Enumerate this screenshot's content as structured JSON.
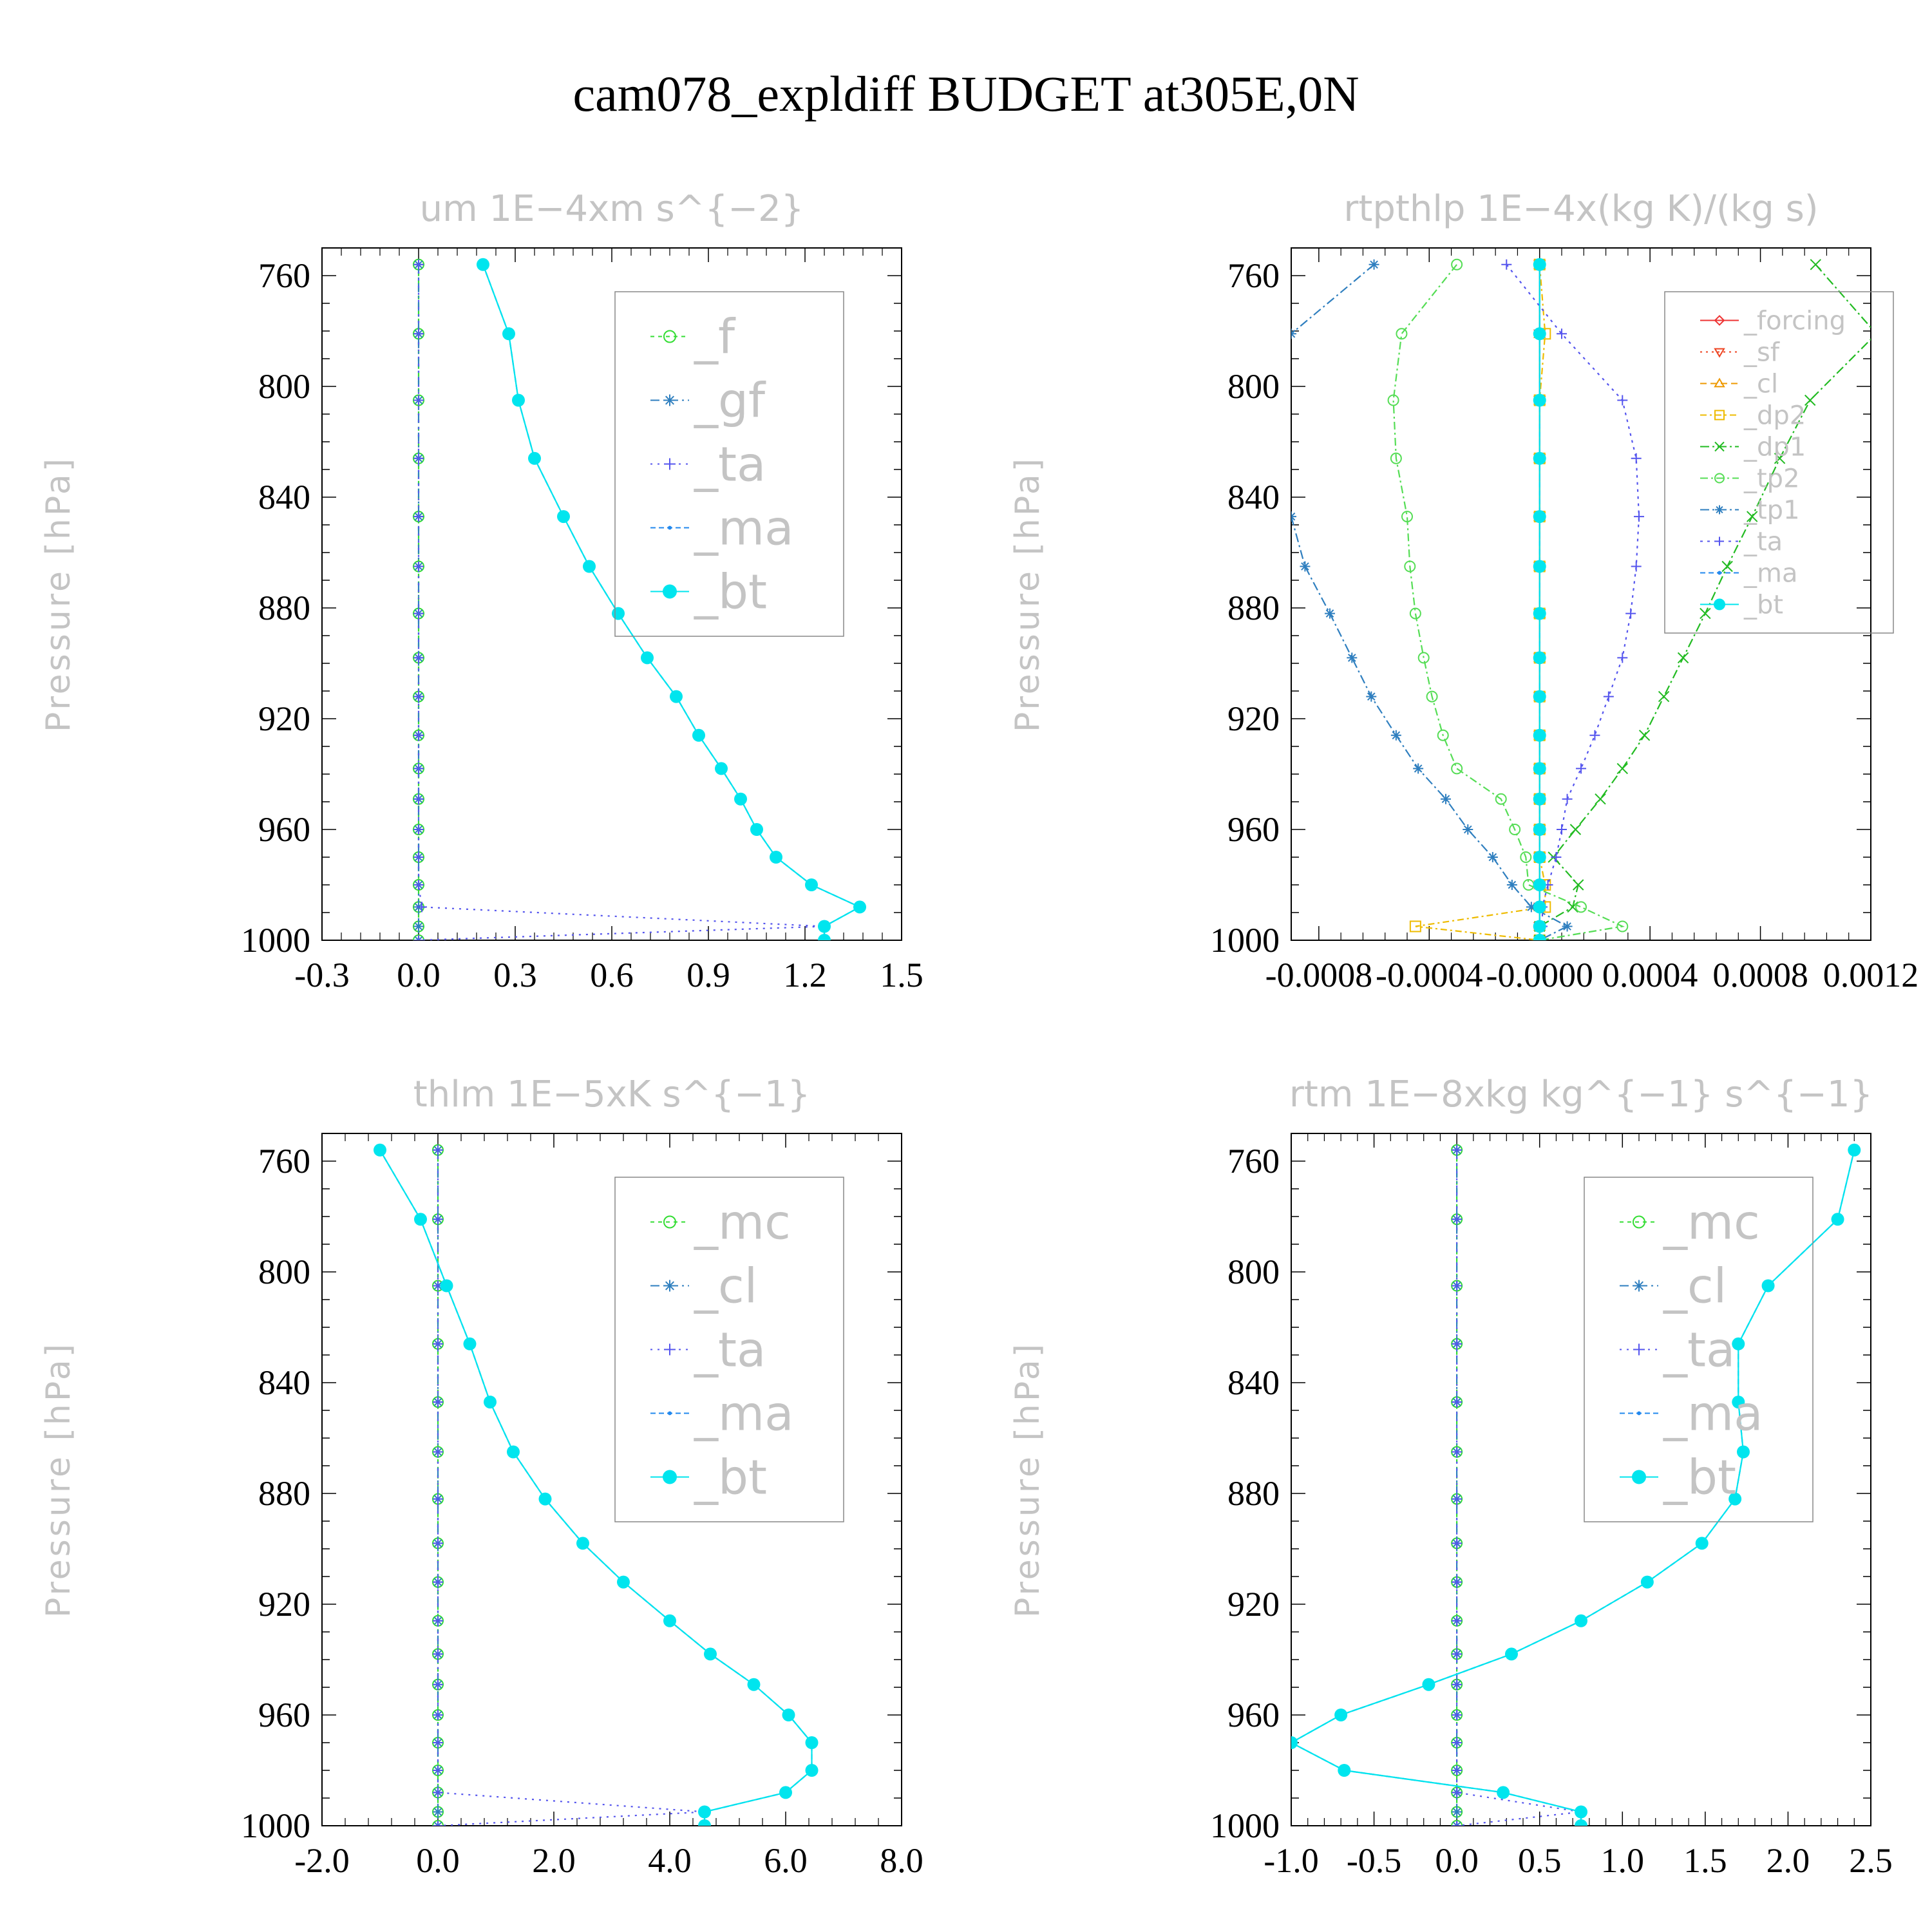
{
  "title": "cam078_expldiff  BUDGET at305E,0N",
  "chart_data": [
    {
      "type": "line",
      "title": "um   1E−4xm s^{−2}",
      "ylabel": "Pressure [hPa]",
      "ylim": [
        1000,
        750
      ],
      "yticks": [
        "760",
        "800",
        "840",
        "880",
        "920",
        "960",
        "1000"
      ],
      "xlim": [
        -0.3,
        1.5
      ],
      "xticks": [
        "-0.3",
        "0.0",
        "0.3",
        "0.6",
        "0.9",
        "1.2",
        "1.5"
      ],
      "legend_position": "top-right",
      "y": [
        756,
        781,
        805,
        826,
        847,
        865,
        882,
        898,
        912,
        926,
        938,
        949,
        960,
        970,
        980,
        988,
        995,
        1000
      ],
      "series": [
        {
          "name": "_f",
          "color": "#33dd33",
          "marker": "circle-open",
          "dash": "6,6",
          "values": [
            0,
            0,
            0,
            0,
            0,
            0,
            0,
            0,
            0,
            0,
            0,
            0,
            0,
            0,
            0,
            0,
            0,
            0
          ]
        },
        {
          "name": "_gf",
          "color": "#2f7fbf",
          "marker": "asterisk",
          "dash": "14,6,3,6",
          "values": [
            0,
            0,
            0,
            0,
            0,
            0,
            0,
            0,
            0,
            0,
            0,
            0,
            0,
            0,
            0,
            0,
            0,
            0
          ]
        },
        {
          "name": "_ta",
          "color": "#5555ee",
          "marker": "plus",
          "dash": "3,8",
          "values": [
            0,
            0,
            0,
            0,
            0,
            0,
            0,
            0,
            0,
            0,
            0,
            0,
            0,
            0,
            0,
            0.01,
            1.26,
            0
          ]
        },
        {
          "name": "_ma",
          "color": "#2288ee",
          "marker": "dot",
          "dash": "8,5",
          "values": [
            0.2,
            0.28,
            0.31,
            0.36,
            0.45,
            0.53,
            0.62,
            0.71,
            0.8,
            0.87,
            0.94,
            1.0,
            1.05,
            1.11,
            1.22,
            1.37,
            1.26,
            1.26
          ]
        },
        {
          "name": "_bt",
          "color": "#00e5ee",
          "marker": "filled",
          "dash": "none",
          "values": [
            0.2,
            0.28,
            0.31,
            0.36,
            0.45,
            0.53,
            0.62,
            0.71,
            0.8,
            0.87,
            0.94,
            1.0,
            1.05,
            1.11,
            1.22,
            1.37,
            1.26,
            1.26
          ]
        }
      ]
    },
    {
      "type": "line",
      "title": "rtpthlp   1E−4x(kg K)/(kg s)",
      "ylabel": "Pressure [hPa]",
      "ylim": [
        1000,
        750
      ],
      "yticks": [
        "760",
        "800",
        "840",
        "880",
        "920",
        "960",
        "1000"
      ],
      "xlim": [
        -0.0009,
        0.0012
      ],
      "xticks": [
        "-0.0008",
        "-0.0004",
        "-0.0000",
        "0.0004",
        "0.0008",
        "0.0012"
      ],
      "legend_position": "top-right",
      "y": [
        756,
        781,
        805,
        826,
        847,
        865,
        882,
        898,
        912,
        926,
        938,
        949,
        960,
        970,
        980,
        988,
        995,
        1000
      ],
      "series": [
        {
          "name": "_forcing",
          "color": "#ee3333",
          "marker": "diamond-open",
          "dash": "none",
          "values": [
            0,
            0,
            0,
            0,
            0,
            0,
            0,
            0,
            0,
            0,
            0,
            0,
            0,
            0,
            0,
            0,
            0,
            0
          ]
        },
        {
          "name": "_sf",
          "color": "#ee4422",
          "marker": "triangle-down",
          "dash": "3,6",
          "values": [
            0,
            0,
            0,
            0,
            0,
            0,
            0,
            0,
            0,
            0,
            0,
            0,
            0,
            0,
            0,
            0,
            0,
            0
          ]
        },
        {
          "name": "_cl",
          "color": "#ee9900",
          "marker": "triangle-up",
          "dash": "10,6",
          "values": [
            0,
            0,
            0,
            0,
            0,
            0,
            0,
            0,
            0,
            0,
            0,
            0,
            0,
            0,
            0,
            0,
            0,
            0
          ]
        },
        {
          "name": "_dp2",
          "color": "#eebb00",
          "marker": "square-open",
          "dash": "10,5,3,5",
          "values": [
            0,
            2e-05,
            0,
            0,
            0,
            0,
            0,
            0,
            0,
            0,
            0,
            0,
            0,
            0,
            2e-05,
            2e-05,
            -0.00045,
            0
          ]
        },
        {
          "name": "_dp1",
          "color": "#22bb22",
          "marker": "cross",
          "dash": "14,5,3,5",
          "values": [
            0.001,
            0.00122,
            0.00098,
            0.00087,
            0.00077,
            0.00068,
            0.0006,
            0.00052,
            0.00045,
            0.00038,
            0.0003,
            0.00022,
            0.00013,
            5e-05,
            0.00014,
            0.00012,
            0.0,
            0.0
          ]
        },
        {
          "name": "_tp2",
          "color": "#55dd55",
          "marker": "circle-open",
          "dash": "12,5,3,5",
          "values": [
            -0.0003,
            -0.0005,
            -0.00053,
            -0.00052,
            -0.00048,
            -0.00047,
            -0.00045,
            -0.00042,
            -0.00039,
            -0.00035,
            -0.0003,
            -0.00014,
            -9e-05,
            -5e-05,
            -4e-05,
            0.00015,
            0.0003,
            0
          ]
        },
        {
          "name": "_tp1",
          "color": "#2f7fbf",
          "marker": "asterisk",
          "dash": "14,5,3,5",
          "values": [
            -0.0006,
            -0.0009,
            -0.00095,
            -0.00097,
            -0.0009,
            -0.00085,
            -0.00076,
            -0.00068,
            -0.00061,
            -0.00052,
            -0.00044,
            -0.00034,
            -0.00026,
            -0.00017,
            -0.0001,
            -3e-05,
            0.0001,
            0
          ]
        },
        {
          "name": "_ta",
          "color": "#5555ee",
          "marker": "plus",
          "dash": "4,7",
          "values": [
            -0.00012,
            8e-05,
            0.0003,
            0.00035,
            0.00036,
            0.00035,
            0.00033,
            0.0003,
            0.00025,
            0.0002,
            0.00015,
            0.0001,
            8e-05,
            6e-05,
            3e-05,
            1e-05,
            1e-05,
            0
          ]
        },
        {
          "name": "_ma",
          "color": "#2288ee",
          "marker": "dot",
          "dash": "8,5",
          "values": [
            0,
            0,
            0,
            0,
            0,
            0,
            0,
            0,
            0,
            0,
            0,
            0,
            0,
            0,
            0,
            0,
            0,
            0
          ]
        },
        {
          "name": "_bt",
          "color": "#00e5ee",
          "marker": "filled",
          "dash": "none",
          "values": [
            0,
            0,
            0,
            0,
            0,
            0,
            0,
            0,
            0,
            0,
            0,
            0,
            0,
            0,
            0,
            0,
            0,
            0
          ]
        }
      ]
    },
    {
      "type": "line",
      "title": "thlm   1E−5xK s^{−1}",
      "ylabel": "Pressure [hPa]",
      "ylim": [
        1000,
        750
      ],
      "yticks": [
        "760",
        "800",
        "840",
        "880",
        "920",
        "960",
        "1000"
      ],
      "xlim": [
        -2.0,
        8.0
      ],
      "xticks": [
        "-2.0",
        "0.0",
        "2.0",
        "4.0",
        "6.0",
        "8.0"
      ],
      "legend_position": "top-right",
      "y": [
        756,
        781,
        805,
        826,
        847,
        865,
        882,
        898,
        912,
        926,
        938,
        949,
        960,
        970,
        980,
        988,
        995,
        1000
      ],
      "series": [
        {
          "name": "_mc",
          "color": "#33dd33",
          "marker": "circle-open",
          "dash": "6,6",
          "values": [
            0,
            0,
            0,
            0,
            0,
            0,
            0,
            0,
            0,
            0,
            0,
            0,
            0,
            0,
            0,
            0,
            0,
            0
          ]
        },
        {
          "name": "_cl",
          "color": "#2f7fbf",
          "marker": "asterisk",
          "dash": "14,6,3,6",
          "values": [
            0,
            0,
            0,
            0,
            0,
            0,
            0,
            0,
            0,
            0,
            0,
            0,
            0,
            0,
            0,
            0,
            0,
            0
          ]
        },
        {
          "name": "_ta",
          "color": "#5555ee",
          "marker": "plus",
          "dash": "3,8",
          "values": [
            0,
            0,
            0,
            0,
            0,
            0,
            0,
            0,
            0,
            0,
            0,
            0,
            0,
            0,
            0,
            0,
            4.6,
            0
          ]
        },
        {
          "name": "_ma",
          "color": "#2288ee",
          "marker": "dot",
          "dash": "8,5",
          "values": [
            -1.0,
            -0.3,
            0.15,
            0.55,
            0.9,
            1.3,
            1.85,
            2.5,
            3.2,
            4.0,
            4.7,
            5.45,
            6.05,
            6.45,
            6.45,
            6.0,
            4.6,
            4.6
          ]
        },
        {
          "name": "_bt",
          "color": "#00e5ee",
          "marker": "filled",
          "dash": "none",
          "values": [
            -1.0,
            -0.3,
            0.15,
            0.55,
            0.9,
            1.3,
            1.85,
            2.5,
            3.2,
            4.0,
            4.7,
            5.45,
            6.05,
            6.45,
            6.45,
            6.0,
            4.6,
            4.6
          ]
        }
      ]
    },
    {
      "type": "line",
      "title": "rtm   1E−8xkg kg^{−1} s^{−1}",
      "ylabel": "Pressure [hPa]",
      "ylim": [
        1000,
        750
      ],
      "yticks": [
        "760",
        "800",
        "840",
        "880",
        "920",
        "960",
        "1000"
      ],
      "xlim": [
        -1.0,
        2.5
      ],
      "xticks": [
        "-1.0",
        "-0.5",
        "0.0",
        "0.5",
        "1.0",
        "1.5",
        "2.0",
        "2.5"
      ],
      "legend_position": "top-right",
      "y": [
        756,
        781,
        805,
        826,
        847,
        865,
        882,
        898,
        912,
        926,
        938,
        949,
        960,
        970,
        980,
        988,
        995,
        1000
      ],
      "series": [
        {
          "name": "_mc",
          "color": "#33dd33",
          "marker": "circle-open",
          "dash": "6,6",
          "values": [
            0,
            0,
            0,
            0,
            0,
            0,
            0,
            0,
            0,
            0,
            0,
            0,
            0,
            0,
            0,
            0,
            0,
            0
          ]
        },
        {
          "name": "_cl",
          "color": "#2f7fbf",
          "marker": "asterisk",
          "dash": "14,6,3,6",
          "values": [
            0,
            0,
            0,
            0,
            0,
            0,
            0,
            0,
            0,
            0,
            0,
            0,
            0,
            0,
            0,
            0,
            0,
            0
          ]
        },
        {
          "name": "_ta",
          "color": "#5555ee",
          "marker": "plus",
          "dash": "3,8",
          "values": [
            0,
            0,
            0,
            0,
            0,
            0,
            0,
            0,
            0,
            0,
            0,
            0,
            0,
            0,
            0,
            0,
            0.75,
            0
          ]
        },
        {
          "name": "_ma",
          "color": "#2288ee",
          "marker": "dot",
          "dash": "8,5",
          "values": [
            2.4,
            2.3,
            1.88,
            1.7,
            1.7,
            1.73,
            1.68,
            1.48,
            1.15,
            0.75,
            0.33,
            -0.17,
            -0.7,
            -1.0,
            -0.68,
            0.28,
            0.75,
            0.75
          ]
        },
        {
          "name": "_bt",
          "color": "#00e5ee",
          "marker": "filled",
          "dash": "none",
          "values": [
            2.4,
            2.3,
            1.88,
            1.7,
            1.7,
            1.73,
            1.68,
            1.48,
            1.15,
            0.75,
            0.33,
            -0.17,
            -0.7,
            -1.0,
            -0.68,
            0.28,
            0.75,
            0.75
          ]
        }
      ]
    }
  ]
}
